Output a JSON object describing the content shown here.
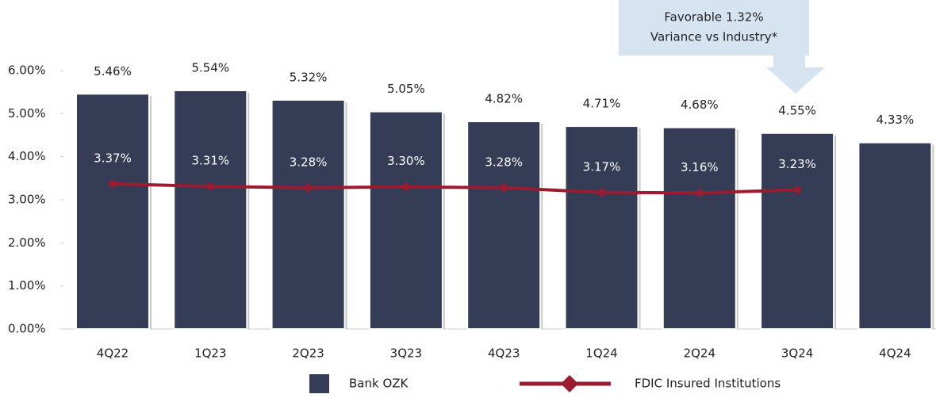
{
  "chart_data": {
    "type": "bar_line",
    "categories": [
      "4Q22",
      "1Q23",
      "2Q23",
      "3Q23",
      "4Q23",
      "1Q24",
      "2Q24",
      "3Q24",
      "4Q24"
    ],
    "series": [
      {
        "name": "Bank OZK",
        "type": "bar",
        "color": "#343d55",
        "values": [
          5.46,
          5.54,
          5.32,
          5.05,
          4.82,
          4.71,
          4.68,
          4.55,
          4.33
        ],
        "value_labels": [
          "5.46%",
          "5.54%",
          "5.32%",
          "5.05%",
          "4.82%",
          "4.71%",
          "4.68%",
          "4.55%",
          "4.33%"
        ]
      },
      {
        "name": "FDIC Insured Institutions",
        "type": "line",
        "color": "#9b1b30",
        "values": [
          3.37,
          3.31,
          3.28,
          3.3,
          3.28,
          3.17,
          3.16,
          3.23,
          null
        ],
        "value_labels": [
          "3.37%",
          "3.31%",
          "3.28%",
          "3.30%",
          "3.28%",
          "3.17%",
          "3.16%",
          "3.23%",
          null
        ]
      }
    ],
    "ylim": [
      0,
      6
    ],
    "yticks": [
      {
        "value": 0,
        "label": "0.00%"
      },
      {
        "value": 1,
        "label": "1.00%"
      },
      {
        "value": 2,
        "label": "2.00%"
      },
      {
        "value": 3,
        "label": "3.00%"
      },
      {
        "value": 4,
        "label": "4.00%"
      },
      {
        "value": 5,
        "label": "5.00%"
      },
      {
        "value": 6,
        "label": "6.00%"
      }
    ],
    "annotation": [
      "Favorable 1.32%",
      "Variance vs Industry*"
    ],
    "legend": "bottom"
  }
}
